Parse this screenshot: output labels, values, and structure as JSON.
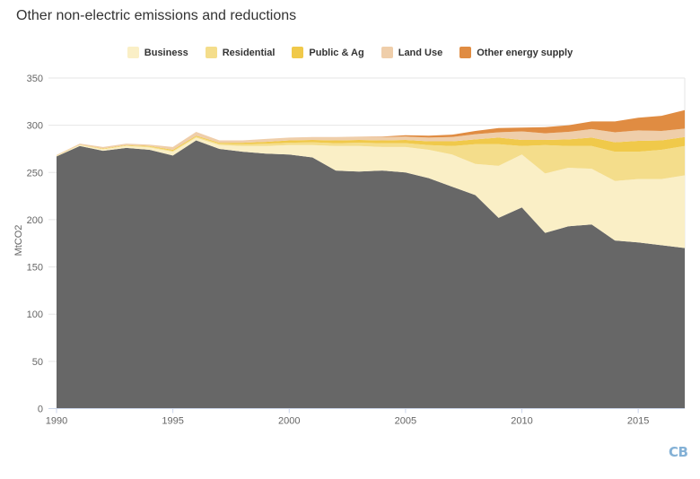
{
  "title": "Other non-electric emissions and reductions",
  "logo": "CB",
  "colors": {
    "gridline": "#e6e6e6",
    "axis_line": "#ccd6eb",
    "tick_mark": "#ccd6eb",
    "tick_label": "#666666",
    "title_text": "#333333",
    "legend_text": "#333333",
    "logo_blue": "#84b1d6"
  },
  "chart_data": {
    "type": "area",
    "stacked": true,
    "title": "Other non-electric emissions and reductions",
    "xlabel": "",
    "ylabel": "MtCO2",
    "ylim": [
      0,
      350
    ],
    "yticks": [
      0,
      50,
      100,
      150,
      200,
      250,
      300,
      350
    ],
    "xticks": [
      1990,
      1995,
      2000,
      2005,
      2010,
      2015
    ],
    "grid": "horizontal",
    "legend_position": "top",
    "x": [
      1990,
      1991,
      1992,
      1993,
      1994,
      1995,
      1996,
      1997,
      1998,
      1999,
      2000,
      2001,
      2002,
      2003,
      2004,
      2005,
      2006,
      2007,
      2008,
      2009,
      2010,
      2011,
      2012,
      2013,
      2014,
      2015,
      2016,
      2017
    ],
    "series": [
      {
        "id": "base",
        "name": "",
        "in_legend": false,
        "color": "#676767",
        "values": [
          267,
          278,
          273,
          276,
          274,
          268,
          284,
          275,
          272,
          270,
          269,
          266,
          252,
          251,
          252,
          250,
          244,
          235,
          226,
          202,
          213,
          186,
          193,
          195,
          178,
          176,
          173,
          170
        ]
      },
      {
        "id": "business",
        "name": "Business",
        "in_legend": true,
        "color": "#faefc6",
        "values": [
          0.5,
          1,
          1.5,
          2,
          2.5,
          4,
          3,
          4,
          6,
          8,
          10,
          13,
          26,
          27,
          25,
          27,
          30,
          34,
          33,
          55,
          56,
          63,
          62,
          59,
          63,
          67,
          70,
          77
        ]
      },
      {
        "id": "residential",
        "name": "Residential",
        "in_legend": true,
        "color": "#f4dd8b",
        "values": [
          0.3,
          0.3,
          0.5,
          0.5,
          1,
          1,
          1,
          1.5,
          2,
          2.5,
          2.5,
          3,
          3,
          3.5,
          4,
          4,
          5,
          9,
          21,
          23,
          9,
          30,
          23,
          24,
          31,
          29,
          31,
          31
        ]
      },
      {
        "id": "public_ag",
        "name": "Public & Ag",
        "in_legend": true,
        "color": "#f0c94a",
        "values": [
          0.2,
          0.2,
          0.5,
          0.5,
          0.5,
          1,
          1,
          1,
          1.5,
          2,
          2.5,
          2.5,
          3,
          3,
          3,
          3.5,
          4,
          5,
          5,
          7,
          6.5,
          5.5,
          7,
          9,
          10,
          11.5,
          10,
          9.5
        ]
      },
      {
        "id": "land_use",
        "name": "Land Use",
        "in_legend": true,
        "color": "#efceaa",
        "values": [
          0.5,
          1,
          1.5,
          1.5,
          1.5,
          3,
          4,
          2.5,
          2.5,
          3,
          3,
          3,
          3.5,
          3.5,
          3.5,
          3.5,
          4,
          4.5,
          5.5,
          5.5,
          9,
          7,
          8,
          9,
          10.5,
          11,
          10,
          9
        ]
      },
      {
        "id": "other_energy",
        "name": "Other energy supply",
        "in_legend": true,
        "color": "#e08c42",
        "values": [
          0,
          0,
          0,
          0,
          0,
          0,
          0,
          0,
          0,
          0,
          0,
          0,
          0,
          0,
          0.5,
          1.5,
          2,
          2.5,
          3.5,
          4.5,
          4,
          6.5,
          7,
          8,
          11.5,
          13.5,
          16,
          19.5
        ]
      }
    ]
  }
}
